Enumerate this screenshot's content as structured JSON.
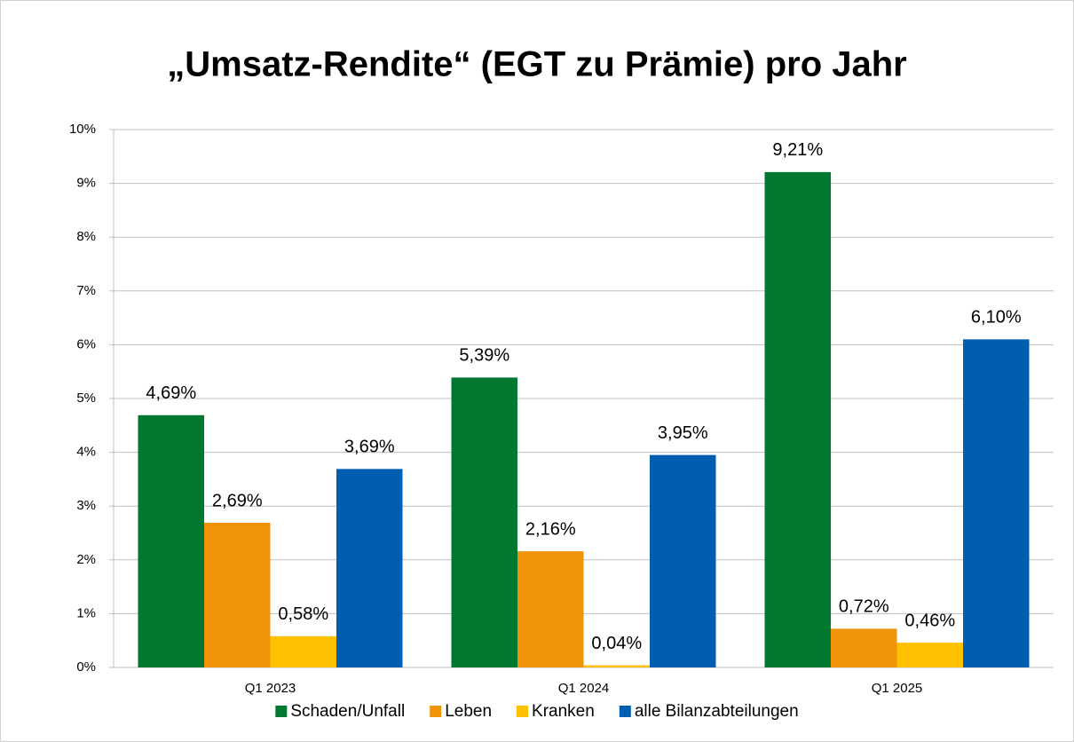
{
  "chart_data": {
    "type": "bar",
    "title": "„Umsatz-Rendite“ (EGT zu Prämie) pro Jahr",
    "categories": [
      "Q1 2023",
      "Q1 2024",
      "Q1 2025"
    ],
    "series": [
      {
        "name": "Schaden/Unfall",
        "color": "#00782f",
        "values": [
          4.69,
          5.39,
          9.21
        ],
        "value_labels": [
          "4,69%",
          "5,39%",
          "9,21%"
        ]
      },
      {
        "name": "Leben",
        "color": "#f0930a",
        "values": [
          2.69,
          2.16,
          0.72
        ],
        "value_labels": [
          "2,69%",
          "2,16%",
          "0,72%"
        ]
      },
      {
        "name": "Kranken",
        "color": "#ffc000",
        "values": [
          0.58,
          0.04,
          0.46
        ],
        "value_labels": [
          "0,58%",
          "0,04%",
          "0,46%"
        ]
      },
      {
        "name": "alle Bilanzabteilungen",
        "color": "#005eb0",
        "values": [
          3.69,
          3.95,
          6.1
        ],
        "value_labels": [
          "3,69%",
          "3,95%",
          "6,10%"
        ]
      }
    ],
    "ylim": [
      0,
      10
    ],
    "yticks": [
      {
        "value": 0,
        "label": "0%"
      },
      {
        "value": 1,
        "label": "1%"
      },
      {
        "value": 2,
        "label": "2%"
      },
      {
        "value": 3,
        "label": "3%"
      },
      {
        "value": 4,
        "label": "4%"
      },
      {
        "value": 5,
        "label": "5%"
      },
      {
        "value": 6,
        "label": "6%"
      },
      {
        "value": 7,
        "label": "7%"
      },
      {
        "value": 8,
        "label": "8%"
      },
      {
        "value": 9,
        "label": "9%"
      },
      {
        "value": 10,
        "label": "10%"
      }
    ],
    "grid": true,
    "legend": "bottom"
  }
}
